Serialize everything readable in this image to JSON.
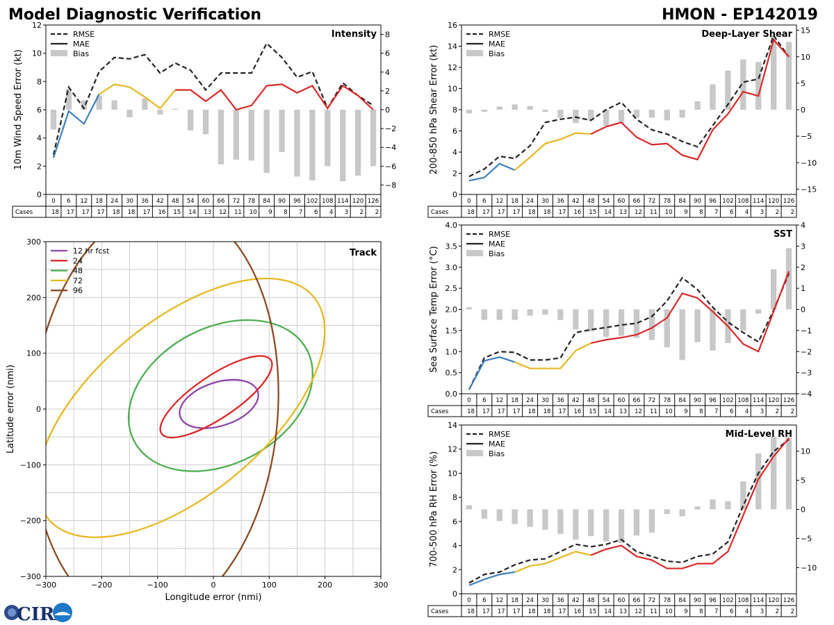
{
  "header": {
    "title": "Model Diagnostic Verification",
    "model_storm": "HMON - EP142019"
  },
  "legend_labels": {
    "rmse": "RMSE",
    "mae": "MAE",
    "bias": "Bias"
  },
  "cases_label": "Cases",
  "logo_text": "CIRA",
  "colors": {
    "rmse": "#222222",
    "seg1": "#3b7fbf",
    "seg2": "#e6b820",
    "seg3": "#dc2626",
    "bias": "#c8c8c8",
    "grid": "#cccccc"
  },
  "chart_data": [
    {
      "id": "intensity",
      "type": "line",
      "title": "Intensity",
      "ylabel": "10m Wind Speed Error (kt)",
      "ylim": [
        0,
        12
      ],
      "yticks": [
        0,
        2,
        4,
        6,
        8,
        10,
        12
      ],
      "y2lim": [
        -9,
        9
      ],
      "y2ticks": [
        -8,
        -6,
        -4,
        -2,
        0,
        2,
        4,
        6,
        8
      ],
      "x": [
        0,
        6,
        12,
        18,
        24,
        30,
        36,
        42,
        48,
        54,
        60,
        66,
        72,
        78,
        84,
        90,
        96,
        102,
        108,
        114,
        120,
        126
      ],
      "rmse": [
        2.8,
        7.6,
        6.1,
        8.7,
        9.7,
        9.6,
        9.9,
        8.6,
        9.3,
        8.8,
        7.4,
        8.6,
        8.6,
        8.6,
        10.7,
        9.7,
        8.3,
        8.7,
        6.1,
        7.9,
        7.0,
        6.3
      ],
      "mae": [
        2.6,
        5.9,
        5.0,
        7.1,
        7.8,
        7.6,
        6.9,
        6.1,
        7.4,
        7.4,
        6.6,
        7.4,
        6.0,
        6.3,
        7.7,
        7.8,
        7.2,
        7.7,
        6.1,
        7.7,
        7.0,
        6.0
      ],
      "bias": [
        -2.1,
        2.2,
        1.0,
        1.5,
        1.0,
        -0.8,
        1.2,
        -0.5,
        0.1,
        -2.2,
        -2.6,
        -5.8,
        -5.3,
        -5.4,
        -6.7,
        -4.5,
        -7.1,
        -7.5,
        -6.0,
        -7.6,
        -7.0,
        -6.0
      ],
      "cases": [
        18,
        17,
        17,
        17,
        18,
        18,
        17,
        16,
        15,
        14,
        13,
        12,
        11,
        10,
        9,
        8,
        7,
        6,
        4,
        3,
        2,
        2
      ]
    },
    {
      "id": "shear",
      "type": "line",
      "title": "Deep-Layer Shear",
      "ylabel": "200-850 hPa Shear Error (kt)",
      "ylim": [
        0,
        16
      ],
      "yticks": [
        0,
        2,
        4,
        6,
        8,
        10,
        12,
        14,
        16
      ],
      "y2lim": [
        -16,
        16
      ],
      "y2ticks": [
        -15,
        -10,
        -5,
        0,
        5,
        10,
        15
      ],
      "x": [
        0,
        6,
        12,
        18,
        24,
        30,
        36,
        42,
        48,
        54,
        60,
        66,
        72,
        78,
        84,
        90,
        96,
        102,
        108,
        114,
        120,
        126
      ],
      "rmse": [
        1.7,
        2.4,
        3.6,
        3.4,
        4.6,
        6.8,
        7.1,
        7.3,
        7.0,
        8.0,
        8.7,
        7.1,
        6.1,
        5.7,
        5.0,
        4.5,
        6.5,
        8.5,
        10.6,
        10.9,
        15.0,
        13.0
      ],
      "mae": [
        1.3,
        1.6,
        2.9,
        2.3,
        3.5,
        4.8,
        5.2,
        5.8,
        5.7,
        6.4,
        6.8,
        5.4,
        4.7,
        4.8,
        3.7,
        3.3,
        6.1,
        7.6,
        9.7,
        9.3,
        14.6,
        13.0
      ],
      "bias": [
        -0.7,
        -0.4,
        0.6,
        1.0,
        0.7,
        -0.4,
        -1.5,
        -2.5,
        -2.0,
        -3.0,
        -2.5,
        -1.5,
        -1.5,
        -2.0,
        -1.5,
        1.6,
        4.8,
        7.4,
        9.5,
        9.0,
        14.0,
        12.8
      ],
      "cases": [
        18,
        17,
        17,
        17,
        18,
        18,
        17,
        16,
        15,
        14,
        13,
        12,
        11,
        10,
        9,
        8,
        7,
        6,
        4,
        3,
        2,
        2
      ]
    },
    {
      "id": "sst",
      "type": "line",
      "title": "SST",
      "ylabel": "Sea Surface Temp Error (°C)",
      "ylim": [
        0,
        4
      ],
      "yticks": [
        "0.0",
        "0.5",
        "1.0",
        "1.5",
        "2.0",
        "2.5",
        "3.0",
        "3.5",
        "4.0"
      ],
      "y2lim": [
        -4,
        4
      ],
      "y2ticks": [
        -4,
        -3,
        -2,
        -1,
        0,
        1,
        2,
        3,
        4
      ],
      "x": [
        0,
        6,
        12,
        18,
        24,
        30,
        36,
        42,
        48,
        54,
        60,
        66,
        72,
        78,
        84,
        90,
        96,
        102,
        108,
        114,
        120,
        126
      ],
      "rmse": [
        0.1,
        0.85,
        1.0,
        0.98,
        0.8,
        0.8,
        0.85,
        1.45,
        1.52,
        1.57,
        1.63,
        1.67,
        1.83,
        2.2,
        2.75,
        2.47,
        2.05,
        1.7,
        1.45,
        1.23,
        1.98,
        2.85
      ],
      "mae": [
        0.1,
        0.78,
        0.87,
        0.75,
        0.6,
        0.6,
        0.6,
        1.02,
        1.2,
        1.28,
        1.33,
        1.4,
        1.56,
        1.8,
        2.38,
        2.27,
        1.95,
        1.6,
        1.18,
        1.0,
        1.95,
        2.9
      ],
      "bias": [
        0.1,
        -0.5,
        -0.5,
        -0.5,
        -0.3,
        -0.25,
        -0.5,
        -0.95,
        -1.05,
        -1.3,
        -1.25,
        -1.35,
        -1.45,
        -1.8,
        -2.4,
        -1.55,
        -1.95,
        -1.6,
        -1.0,
        -0.2,
        1.9,
        2.9
      ],
      "cases": [
        18,
        17,
        17,
        17,
        18,
        18,
        17,
        16,
        15,
        14,
        13,
        12,
        11,
        10,
        9,
        8,
        7,
        6,
        4,
        3,
        2,
        2
      ]
    },
    {
      "id": "rh",
      "type": "line",
      "title": "Mid-Level RH",
      "ylabel": "700-500 hPa RH Error (%)",
      "ylim": [
        0,
        14
      ],
      "yticks": [
        0,
        2,
        4,
        6,
        8,
        10,
        12,
        14
      ],
      "y2lim": [
        -14.5,
        14.5
      ],
      "y2ticks": [
        -10,
        -5,
        0,
        5,
        10
      ],
      "x": [
        0,
        6,
        12,
        18,
        24,
        30,
        36,
        42,
        48,
        54,
        60,
        66,
        72,
        78,
        84,
        90,
        96,
        102,
        108,
        114,
        120,
        126
      ],
      "rmse": [
        0.9,
        1.6,
        1.8,
        2.4,
        2.8,
        2.9,
        3.5,
        4.1,
        3.9,
        4.1,
        4.5,
        3.5,
        3.1,
        2.7,
        2.6,
        3.1,
        3.3,
        4.3,
        7.3,
        10.0,
        11.8,
        12.8
      ],
      "mae": [
        0.7,
        1.2,
        1.6,
        1.8,
        2.3,
        2.5,
        3.0,
        3.5,
        3.2,
        3.7,
        4.0,
        3.1,
        2.8,
        2.1,
        2.1,
        2.5,
        2.5,
        3.5,
        6.5,
        9.5,
        11.4,
        12.9
      ],
      "bias": [
        0.7,
        -1.6,
        -2.0,
        -2.5,
        -3.0,
        -3.5,
        -4.2,
        -5.2,
        -4.6,
        -5.5,
        -5.8,
        -4.5,
        -4.0,
        -0.8,
        -1.2,
        0.5,
        1.7,
        1.4,
        4.8,
        9.6,
        12.5,
        12.4
      ],
      "cases": [
        18,
        17,
        17,
        17,
        18,
        18,
        17,
        16,
        15,
        14,
        13,
        12,
        11,
        10,
        9,
        8,
        7,
        6,
        4,
        3,
        2,
        2
      ]
    },
    {
      "id": "track",
      "type": "scatter",
      "title": "Track",
      "xlabel": "Longitude error (nmi)",
      "ylabel": "Latitude error (nmi)",
      "xlim": [
        -300,
        300
      ],
      "ylim": [
        -300,
        300
      ],
      "ticks": [
        -300,
        -200,
        -100,
        0,
        100,
        200,
        300
      ],
      "legend": [
        "12 hr fcst",
        "24",
        "48",
        "72",
        "96"
      ],
      "ellipses": [
        {
          "label": "12 hr fcst",
          "color": "#8e44ad",
          "cx": 10,
          "cy": 9,
          "rx": 73,
          "ry": 39,
          "angle": 18
        },
        {
          "label": "24",
          "color": "#dc2626",
          "cx": 5,
          "cy": 22,
          "rx": 118,
          "ry": 38,
          "angle": 34
        },
        {
          "label": "48",
          "color": "#4caf50",
          "cx": 13,
          "cy": 24,
          "rx": 175,
          "ry": 122,
          "angle": 28
        },
        {
          "label": "72",
          "color": "#e6b820",
          "cx": -58,
          "cy": 2,
          "rx": 310,
          "ry": 155,
          "angle": 40
        },
        {
          "label": "96",
          "color": "#8b4a22",
          "cx": -105,
          "cy": -8,
          "rx": 375,
          "ry": 220,
          "angle": 85
        }
      ]
    }
  ]
}
